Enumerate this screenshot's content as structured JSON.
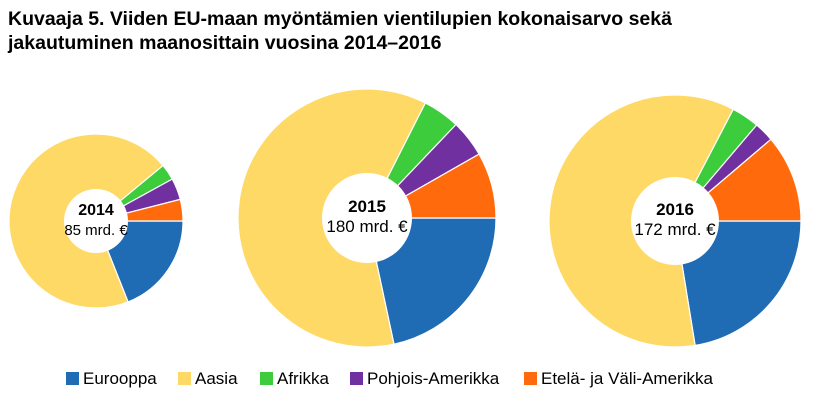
{
  "title": {
    "line1": "Kuvaaja 5. Viiden EU-maan myöntämien vientilupien kokonaisarvo sekä",
    "line2": "jakautuminen maanosittain vuosina 2014–2016"
  },
  "colors": {
    "Eurooppa": "#1f6cb5",
    "Aasia": "#ffd966",
    "Afrikka": "#3ccc3c",
    "Pohjois-Amerikka": "#7030a0",
    "Etelä- ja Väli-Amerikka": "#ff6a0d"
  },
  "chart_data": {
    "type": "pie",
    "variant": "donut",
    "unit": "%",
    "categories": [
      "Eurooppa",
      "Aasia",
      "Afrikka",
      "Pohjois-Amerikka",
      "Etelä- ja Väli-Amerikka"
    ],
    "legend_position": "bottom",
    "charts": [
      {
        "year": "2014",
        "total_label": "85 mrd. €",
        "total": 85,
        "values": [
          19,
          70,
          3,
          4,
          4
        ]
      },
      {
        "year": "2015",
        "total_label": "180 mrd. €",
        "total": 180,
        "values": [
          21,
          59,
          4.5,
          4.5,
          8
        ]
      },
      {
        "year": "2016",
        "total_label": "172 mrd. €",
        "total": 172,
        "values": [
          22,
          59,
          3.5,
          2.5,
          11
        ]
      }
    ]
  }
}
